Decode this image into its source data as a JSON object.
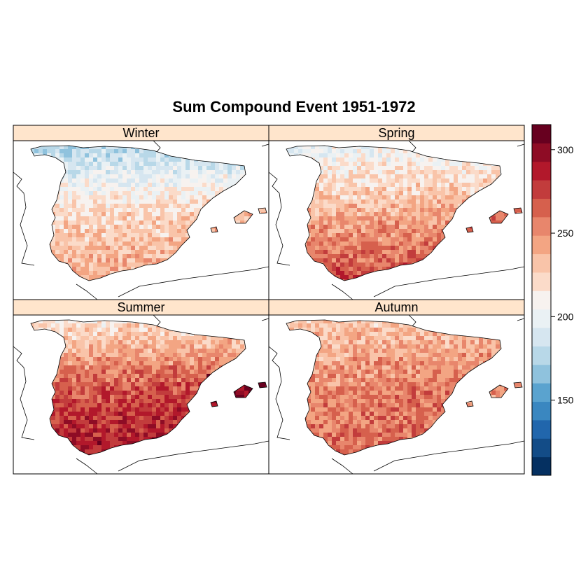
{
  "chart_data": {
    "type": "heatmap",
    "title": "Sum Compound Event 1951-1972",
    "panels": [
      {
        "name": "Winter",
        "regions": {
          "north": 175,
          "center": 225,
          "south": 250,
          "balearic": 235
        }
      },
      {
        "name": "Spring",
        "regions": {
          "north": 200,
          "center": 240,
          "south": 285,
          "balearic": 265
        }
      },
      {
        "name": "Summer",
        "regions": {
          "north": 215,
          "center": 270,
          "south": 300,
          "balearic": 300
        }
      },
      {
        "name": "Autumn",
        "regions": {
          "north": 230,
          "center": 255,
          "south": 265,
          "balearic": 250
        }
      }
    ],
    "colorbar": {
      "range": [
        105,
        315
      ],
      "ticks": [
        150,
        200,
        250,
        300
      ],
      "colors": [
        "#053061",
        "#134c87",
        "#2166ac",
        "#3a87c0",
        "#5aa3cf",
        "#8fc2dd",
        "#b8d8e8",
        "#d6e6f0",
        "#eaf1f4",
        "#f7f2ef",
        "#fbdbc9",
        "#f9c4a9",
        "#f3a583",
        "#e8866c",
        "#d6604d",
        "#c23c3c",
        "#b2182b",
        "#8e0c25",
        "#67001f"
      ]
    }
  }
}
